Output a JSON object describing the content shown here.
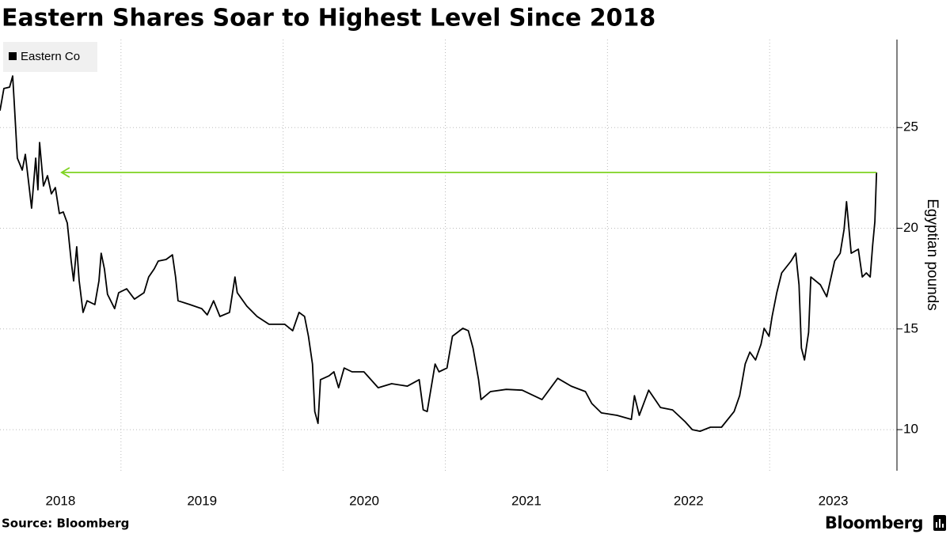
{
  "chart_data": {
    "type": "line",
    "title": "Eastern Shares Soar to Highest Level Since 2018",
    "ylabel": "Egyptian pounds",
    "source": "Source: Bloomberg",
    "logo": "Bloomberg",
    "legend": "top-left",
    "grid": true,
    "xlim": [
      2018.254,
      2023.785
    ],
    "xticks": [
      2018,
      2019,
      2020,
      2021,
      2022,
      2023
    ],
    "ylim": [
      7.96,
      29.37
    ],
    "yticks": [
      10,
      15,
      20,
      25
    ],
    "annotation_line": {
      "y": 22.77,
      "x": [
        2018.634,
        2023.659
      ],
      "color": "#7ed321"
    },
    "x": [
      2018.254,
      2018.278,
      2018.313,
      2018.332,
      2018.342,
      2018.361,
      2018.391,
      2018.41,
      2018.43,
      2018.449,
      2018.474,
      2018.488,
      2018.498,
      2018.522,
      2018.547,
      2018.571,
      2018.595,
      2018.62,
      2018.644,
      2018.669,
      2018.693,
      2018.708,
      2018.727,
      2018.742,
      2018.766,
      2018.791,
      2018.839,
      2018.864,
      2018.878,
      2018.898,
      2018.917,
      2018.961,
      2018.986,
      2019.035,
      2019.083,
      2019.142,
      2019.171,
      2019.205,
      2019.23,
      2019.278,
      2019.317,
      2019.337,
      2019.352,
      2019.425,
      2019.498,
      2019.532,
      2019.571,
      2019.61,
      2019.669,
      2019.703,
      2019.717,
      2019.776,
      2019.839,
      2019.913,
      2020.01,
      2020.059,
      2020.098,
      2020.132,
      2020.156,
      2020.181,
      2020.195,
      2020.215,
      2020.23,
      2020.283,
      2020.313,
      2020.342,
      2020.376,
      2020.425,
      2020.498,
      2020.586,
      2020.669,
      2020.766,
      2020.839,
      2020.864,
      2020.888,
      2020.937,
      2020.961,
      2021.01,
      2021.044,
      2021.108,
      2021.142,
      2021.171,
      2021.205,
      2021.22,
      2021.278,
      2021.376,
      2021.474,
      2021.596,
      2021.693,
      2021.776,
      2021.864,
      2021.903,
      2021.962,
      2022.059,
      2022.147,
      2022.166,
      2022.196,
      2022.254,
      2022.327,
      2022.401,
      2022.479,
      2022.523,
      2022.571,
      2022.635,
      2022.703,
      2022.781,
      2022.815,
      2022.849,
      2022.878,
      2022.913,
      2022.947,
      2022.966,
      2022.996,
      2023.015,
      2023.044,
      2023.074,
      2023.132,
      2023.161,
      2023.181,
      2023.196,
      2023.215,
      2023.24,
      2023.254,
      2023.313,
      2023.352,
      2023.401,
      2023.435,
      2023.459,
      2023.474,
      2023.503,
      2023.547,
      2023.571,
      2023.596,
      2023.62,
      2023.635,
      2023.649,
      2023.659
    ],
    "series": [
      {
        "name": "Eastern Co",
        "color": "#000000",
        "values": [
          25.84,
          26.94,
          27.01,
          27.56,
          26.23,
          23.48,
          22.89,
          23.67,
          22.3,
          21.0,
          23.48,
          21.91,
          24.26,
          22.1,
          22.61,
          21.71,
          22.02,
          20.73,
          20.81,
          20.26,
          18.37,
          17.39,
          19.08,
          17.39,
          15.82,
          16.4,
          16.21,
          17.39,
          18.76,
          17.98,
          16.72,
          16.01,
          16.8,
          16.99,
          16.48,
          16.8,
          17.58,
          17.98,
          18.37,
          18.45,
          18.68,
          17.58,
          16.4,
          16.21,
          16.01,
          15.7,
          16.4,
          15.62,
          15.82,
          17.58,
          16.8,
          16.13,
          15.62,
          15.23,
          15.23,
          14.91,
          15.82,
          15.62,
          14.64,
          13.26,
          10.9,
          10.31,
          12.48,
          12.67,
          12.87,
          12.08,
          13.06,
          12.87,
          12.87,
          12.08,
          12.28,
          12.16,
          12.48,
          10.98,
          10.9,
          13.26,
          12.87,
          13.06,
          14.64,
          15.03,
          14.91,
          14.05,
          12.48,
          11.49,
          11.89,
          12.0,
          11.96,
          11.49,
          12.55,
          12.16,
          11.89,
          11.3,
          10.83,
          10.71,
          10.51,
          11.69,
          10.71,
          11.96,
          11.1,
          10.98,
          10.39,
          10.0,
          9.92,
          10.12,
          10.12,
          10.9,
          11.69,
          13.26,
          13.85,
          13.46,
          14.24,
          15.03,
          14.64,
          15.62,
          16.8,
          17.78,
          18.37,
          18.76,
          17.19,
          14.05,
          13.46,
          14.83,
          17.58,
          17.19,
          16.6,
          18.37,
          18.76,
          19.94,
          21.32,
          18.76,
          18.96,
          17.58,
          17.78,
          17.58,
          19.16,
          20.33,
          22.77
        ]
      }
    ]
  }
}
